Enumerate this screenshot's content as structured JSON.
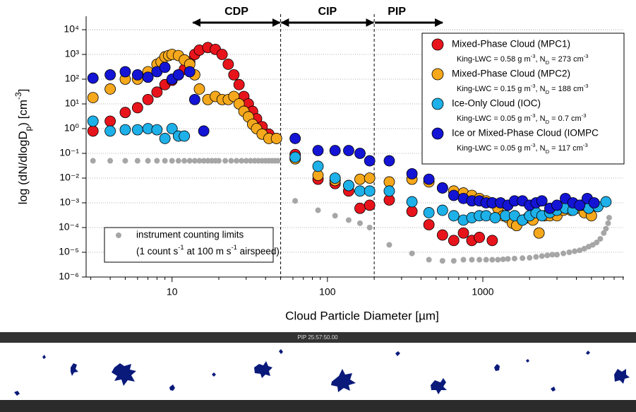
{
  "chart_data": {
    "type": "scatter",
    "xlabel": "Cloud Particle Diameter [µm]",
    "ylabel": [
      {
        "t": "log (dN/dlogD"
      },
      {
        "sub": "p"
      },
      {
        "t": ") [cm"
      },
      {
        "sup": "-3"
      },
      {
        "t": "]"
      }
    ],
    "log_x": true,
    "log_y": true,
    "grid": true,
    "legend": "upper right",
    "xlim": [
      2.8,
      8100
    ],
    "ylim": [
      1e-06,
      35000
    ],
    "xticks": [
      10,
      100,
      1000
    ],
    "xminorticks": [
      3,
      4,
      5,
      6,
      7,
      8,
      9,
      20,
      30,
      40,
      50,
      60,
      70,
      80,
      90,
      200,
      300,
      400,
      500,
      600,
      700,
      800,
      900,
      2000,
      3000,
      4000,
      5000,
      6000,
      7000,
      8000
    ],
    "yticks": [
      {
        "value": 1e-06,
        "label": "10⁻⁶"
      },
      {
        "value": 1e-05,
        "label": "10⁻⁵"
      },
      {
        "value": 0.0001,
        "label": "10⁻⁴"
      },
      {
        "value": 0.001,
        "label": "10⁻³"
      },
      {
        "value": 0.01,
        "label": "10⁻²"
      },
      {
        "value": 0.1,
        "label": "10⁻¹"
      },
      {
        "value": 1,
        "label": "10⁰"
      },
      {
        "value": 10,
        "label": "10¹"
      },
      {
        "value": 100,
        "label": "10²"
      },
      {
        "value": 1000,
        "label": "10³"
      },
      {
        "value": 10000,
        "label": "10⁴"
      }
    ],
    "dividers": [
      50,
      200
    ],
    "regions": [
      {
        "label": "CDP",
        "x": [
          13.5,
          50
        ],
        "heads": "both"
      },
      {
        "label": "CIP",
        "x": [
          50,
          200
        ],
        "heads": "both"
      },
      {
        "label": "PIP",
        "x": [
          200,
          556
        ],
        "heads": "end"
      }
    ],
    "limits": {
      "name": "instrument counting limits",
      "note": [
        {
          "t": "(1 count s"
        },
        {
          "sup": "-1"
        },
        {
          "t": " at 100 m s"
        },
        {
          "sup": "-1"
        },
        {
          "t": " airspeed)"
        }
      ],
      "color": "#a6a6a6",
      "x": [
        3.1,
        4,
        5,
        6,
        7,
        8,
        9,
        10,
        11,
        12,
        13,
        14,
        15,
        16,
        17,
        18,
        19,
        20,
        22,
        24,
        26,
        28,
        30,
        32,
        34,
        36,
        38,
        40,
        42,
        44,
        46,
        48,
        62,
        87,
        112,
        137,
        162,
        187,
        250,
        350,
        450,
        550,
        650,
        750,
        850,
        950,
        1050,
        1150,
        1250,
        1350,
        1450,
        1600,
        1800,
        2000,
        2200,
        2400,
        2600,
        2800,
        3000,
        3300,
        3600,
        3900,
        4200,
        4500,
        4800,
        5100,
        5400,
        5700,
        6000,
        6200,
        6400,
        6500
      ],
      "values": [
        0.05,
        0.05,
        0.05,
        0.05,
        0.05,
        0.05,
        0.05,
        0.05,
        0.05,
        0.05,
        0.05,
        0.05,
        0.05,
        0.05,
        0.05,
        0.05,
        0.05,
        0.05,
        0.05,
        0.05,
        0.05,
        0.05,
        0.05,
        0.05,
        0.05,
        0.05,
        0.05,
        0.05,
        0.05,
        0.05,
        0.05,
        0.05,
        0.0012,
        0.0005,
        0.0003,
        0.0002,
        0.00015,
        0.0001,
        2e-05,
        9e-06,
        5e-06,
        4.5e-06,
        4.5e-06,
        5e-06,
        5e-06,
        5e-06,
        5e-06,
        5e-06,
        5e-06,
        5.2e-06,
        5.4e-06,
        5.6e-06,
        5.8e-06,
        6e-06,
        6.5e-06,
        7e-06,
        7.5e-06,
        8e-06,
        8e-06,
        9e-06,
        1e-05,
        1.1e-05,
        1.2e-05,
        1.4e-05,
        1.7e-05,
        2e-05,
        2.5e-05,
        3.5e-05,
        6e-05,
        9e-05,
        0.00015,
        0.00025
      ]
    },
    "series": [
      {
        "name": "Mixed-Phase Cloud (MPC1)",
        "color": "#e8141c",
        "detail": [
          {
            "t": "King-LWC = 0.58 g m"
          },
          {
            "sup": "-3"
          },
          {
            "t": ", N"
          },
          {
            "sub": "D"
          },
          {
            "t": " = 273 cm"
          },
          {
            "sup": "-3"
          }
        ],
        "x": [
          3.1,
          4,
          5,
          6,
          7,
          8,
          9,
          10,
          11,
          12,
          13,
          14,
          15,
          17,
          19,
          21,
          23,
          25,
          27,
          29,
          31,
          33,
          35,
          38,
          42,
          47,
          62,
          87,
          112,
          137,
          162,
          187,
          250,
          350,
          450,
          550,
          650,
          750,
          850,
          950,
          1150
        ],
        "values": [
          0.8,
          2,
          4.5,
          7,
          15,
          30,
          60,
          90,
          150,
          250,
          500,
          1000,
          1500,
          1900,
          1600,
          1000,
          400,
          150,
          60,
          20,
          10,
          5,
          2.5,
          1.2,
          0.6,
          0.4,
          0.09,
          0.009,
          0.006,
          0.003,
          0.0006,
          0.0008,
          0.0013,
          0.00045,
          0.00013,
          5e-05,
          3e-05,
          6e-05,
          3e-05,
          4e-05,
          3e-05
        ]
      },
      {
        "name": "Mixed-Phase Cloud (MPC2)",
        "color": "#f5a81c",
        "detail": [
          {
            "t": "King-LWC = 0.15 g m"
          },
          {
            "sup": "-3"
          },
          {
            "t": ", N"
          },
          {
            "sub": "D"
          },
          {
            "t": " = 188 cm"
          },
          {
            "sup": "-3"
          }
        ],
        "x": [
          3.1,
          4,
          5,
          6,
          7,
          8,
          8.5,
          9,
          9.5,
          10,
          11,
          12,
          13,
          14,
          15,
          17,
          19,
          21,
          23,
          25,
          27,
          29,
          31,
          33,
          35,
          38,
          42,
          47,
          62,
          87,
          112,
          137,
          162,
          187,
          250,
          350,
          450,
          550,
          650,
          750,
          850,
          950,
          1050,
          1150,
          1250,
          1350,
          1450,
          1550,
          1650,
          1800,
          1950,
          2100,
          2300,
          2500,
          2700,
          3000,
          3300,
          3700,
          4000,
          4500,
          5000
        ],
        "values": [
          18,
          40,
          100,
          100,
          200,
          400,
          500,
          800,
          900,
          1000,
          900,
          600,
          400,
          150,
          40,
          15,
          20,
          15,
          15,
          20,
          10,
          5,
          3,
          1.5,
          1,
          0.6,
          0.4,
          0.4,
          0.06,
          0.013,
          0.008,
          0.005,
          0.009,
          0.01,
          0.007,
          0.009,
          0.007,
          0.004,
          0.003,
          0.0025,
          0.002,
          0.0015,
          0.0012,
          0.001,
          0.0006,
          0.0003,
          0.00025,
          0.00015,
          0.00012,
          0.0002,
          0.00025,
          0.0002,
          6e-05,
          0.0003,
          0.0003,
          0.0003,
          0.0005,
          0.0005,
          0.0006,
          0.0004,
          0.0003
        ]
      },
      {
        "name": "Ice-Only Cloud (IOC)",
        "color": "#1eb0e8",
        "detail": [
          {
            "t": "King-LWC = 0.05 g m"
          },
          {
            "sup": "-3"
          },
          {
            "t": ", N"
          },
          {
            "sub": "D"
          },
          {
            "t": " = 0.7 cm"
          },
          {
            "sup": "-3"
          }
        ],
        "x": [
          3.1,
          4,
          5,
          6,
          7,
          8,
          9,
          10,
          11,
          12,
          62,
          87,
          112,
          137,
          162,
          187,
          250,
          350,
          450,
          550,
          650,
          750,
          850,
          950,
          1050,
          1200,
          1400,
          1600,
          1800,
          2000,
          2200,
          2400,
          2700,
          3000,
          3400,
          3800,
          4300,
          4800,
          5500,
          6200
        ],
        "values": [
          2,
          0.8,
          0.9,
          0.9,
          1,
          0.9,
          0.4,
          1,
          0.5,
          0.5,
          0.07,
          0.03,
          0.01,
          0.005,
          0.003,
          0.003,
          0.003,
          0.0011,
          0.0004,
          0.0005,
          0.0003,
          0.0002,
          0.00025,
          0.0003,
          0.0003,
          0.00025,
          0.0003,
          0.0003,
          0.0002,
          0.0003,
          0.0004,
          0.0003,
          0.0004,
          0.0005,
          0.0006,
          0.0005,
          0.0008,
          0.0006,
          0.0007,
          0.0011
        ]
      },
      {
        "name": "Ice or Mixed-Phase Cloud (IOMPC",
        "color": "#1414d4",
        "detail": [
          {
            "t": "King-LWC = 0.05 g m"
          },
          {
            "sup": "-3"
          },
          {
            "t": ", N"
          },
          {
            "sub": "D"
          },
          {
            "t": " = 117 cm"
          },
          {
            "sup": "-3"
          }
        ],
        "x": [
          3.1,
          4,
          5,
          6,
          7,
          8,
          9,
          10,
          11,
          13,
          14,
          16,
          62,
          87,
          112,
          137,
          162,
          187,
          250,
          350,
          450,
          550,
          650,
          750,
          850,
          950,
          1050,
          1150,
          1300,
          1450,
          1600,
          1800,
          2000,
          2200,
          2400,
          2700,
          3000,
          3400,
          3800,
          4200,
          4700,
          5200
        ],
        "values": [
          110,
          150,
          200,
          150,
          120,
          200,
          300,
          100,
          150,
          200,
          15,
          0.8,
          0.4,
          0.13,
          0.13,
          0.13,
          0.1,
          0.05,
          0.05,
          0.015,
          0.009,
          0.004,
          0.002,
          0.0015,
          0.0012,
          0.0012,
          0.001,
          0.001,
          0.001,
          0.0008,
          0.0012,
          0.0012,
          0.0008,
          0.001,
          0.0012,
          0.0006,
          0.0008,
          0.0015,
          0.001,
          0.0008,
          0.0015,
          0.001
        ]
      }
    ]
  },
  "image_strip": {
    "label": "PIP 25:57:50.00"
  }
}
